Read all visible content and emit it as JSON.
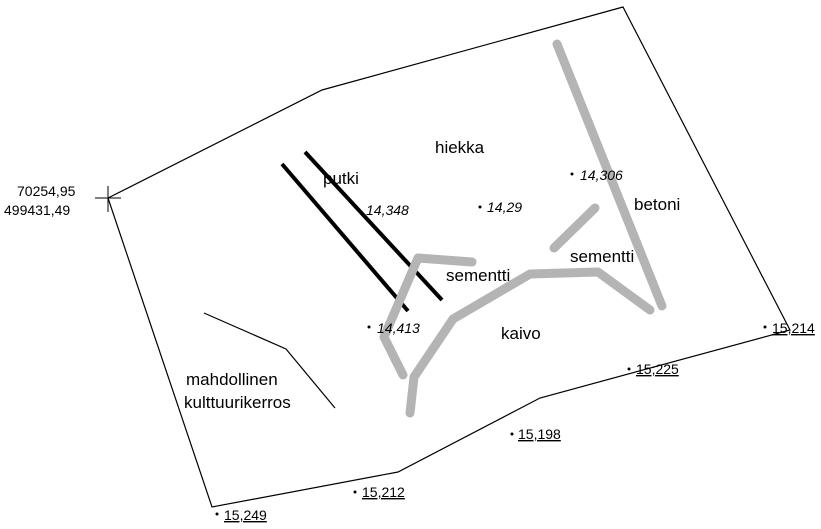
{
  "coordinates": {
    "x": "70254,95",
    "y": "499431,49"
  },
  "area_labels": {
    "hiekka": "hiekka",
    "putki": "putki",
    "betoni": "betoni",
    "sementti_left": "sementti",
    "sementti_right": "sementti",
    "kaivo": "kaivo",
    "culture_layer_line1": "mahdollinen",
    "culture_layer_line2": "kulttuurikerros"
  },
  "elevations_inside": [
    "14,348",
    "14,29",
    "14,306",
    "14,413"
  ],
  "elevations_boundary": [
    "15,214",
    "15;225",
    "15,198",
    "15,212",
    "15,249"
  ],
  "colors": {
    "boundary": "#000000",
    "pipe": "#000000",
    "foundation": "#b4b4b4"
  }
}
